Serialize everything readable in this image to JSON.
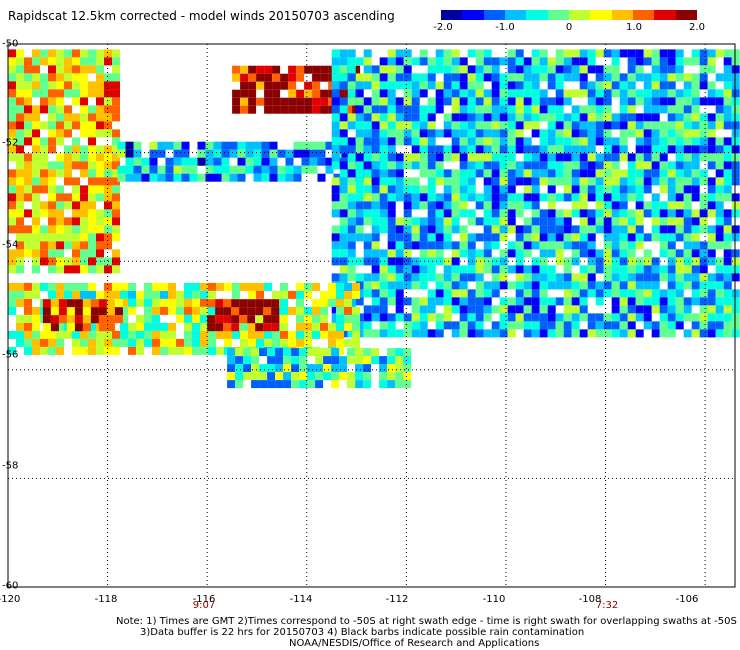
{
  "title": "Rapidscat 12.5km corrected - model winds 20150703 ascending",
  "colorbar": {
    "labels": [
      "-2.0",
      "-1.0",
      "0",
      "1.0",
      "2.0"
    ],
    "values": [
      -2.0,
      -1.0,
      0,
      1.0,
      2.0
    ],
    "min": -2.0,
    "max": 2.0,
    "colors": [
      "#0000a0",
      "#0000ff",
      "#0060ff",
      "#00c0ff",
      "#00ffe0",
      "#60ff90",
      "#c0ff30",
      "#ffff00",
      "#ffc000",
      "#ff6000",
      "#e00000",
      "#8b0000"
    ]
  },
  "map": {
    "x_ticks": [
      "-120",
      "-118",
      "-116",
      "-114",
      "-112",
      "-110",
      "-108",
      "-106"
    ],
    "y_ticks": [
      "-50",
      "-52",
      "-54",
      "-56",
      "-58",
      "-60"
    ],
    "lon_range": [
      -120,
      -105.4
    ],
    "lat_range": [
      -60,
      -50
    ],
    "time_marks": [
      {
        "label": "9:07",
        "lon": -116
      },
      {
        "label": "7:32",
        "lon": -107.6
      }
    ],
    "grid": true,
    "swath_regions": [
      {
        "lon": [
          -120,
          -117.8
        ],
        "lat": [
          -54.1,
          -50.1
        ],
        "mean": 0.6
      },
      {
        "lon": [
          -117.8,
          -112.5
        ],
        "lat": [
          -52.5,
          -51.8
        ],
        "mean": -0.8
      },
      {
        "lon": [
          -115.5,
          -113.0
        ],
        "lat": [
          -51.2,
          -50.4
        ],
        "mean": 1.8
      },
      {
        "lon": [
          -113.5,
          -105.4
        ],
        "lat": [
          -55.3,
          -50.1
        ],
        "mean": -0.7
      },
      {
        "lon": [
          -120,
          -113.0
        ],
        "lat": [
          -55.6,
          -54.4
        ],
        "mean": 0.2
      },
      {
        "lon": [
          -116.0,
          -114.6
        ],
        "lat": [
          -55.3,
          -54.7
        ],
        "mean": 1.9
      },
      {
        "lon": [
          -119.3,
          -117.8
        ],
        "lat": [
          -55.2,
          -54.7
        ],
        "mean": 1.2
      },
      {
        "lon": [
          -115.6,
          -112.0
        ],
        "lat": [
          -56.3,
          -55.6
        ],
        "mean": -0.4
      }
    ]
  },
  "notes": [
    "Note: 1) Times are GMT 2)Times correspond to -50S at right swath edge - time is right swath for overlapping swaths at -50S",
    "3)Data buffer is 22 hrs for 20150703 4) Black barbs indicate possible rain contamination",
    "NOAA/NESDIS/Office of Research and Applications"
  ]
}
